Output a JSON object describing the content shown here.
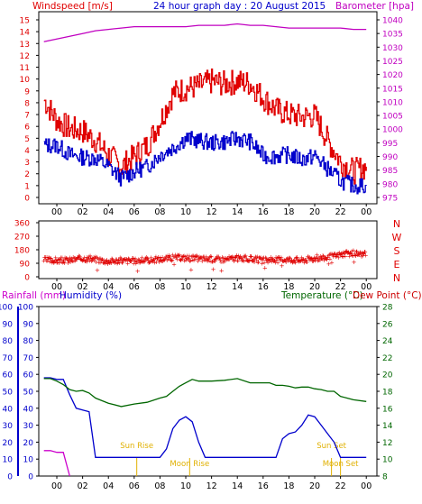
{
  "header": {
    "title": "24 hour graph day : 20 August 2015",
    "windspeed_label": "Windspeed [m/s]",
    "barometer_label": "Barometer [hpa]"
  },
  "colors": {
    "wind_gust": "#e00000",
    "wind_avg": "#0000cc",
    "barometer": "#c000c0",
    "direction": "#e00000",
    "humidity": "#0000cc",
    "temperature": "#006600",
    "dewpoint": "#cc0000",
    "rainfall": "#cc00cc",
    "sun_moon": "#e0b000",
    "axis_text": "#000000",
    "blue_text": "#0000cc",
    "green_text": "#006600"
  },
  "chart_data": [
    {
      "type": "line",
      "title": "24 hour graph day : 20 August 2015",
      "ylabel": "Windspeed [m/s]",
      "y2label": "Barometer [hpa]",
      "ylim": [
        0,
        15
      ],
      "y2lim": [
        975,
        1040
      ],
      "x_ticks": [
        "00",
        "02",
        "04",
        "06",
        "08",
        "10",
        "12",
        "14",
        "16",
        "18",
        "20",
        "22",
        "00"
      ],
      "y_ticks": [
        0,
        1,
        2,
        3,
        4,
        5,
        6,
        7,
        8,
        9,
        10,
        11,
        12,
        13,
        14,
        15
      ],
      "y2_ticks": [
        975,
        980,
        985,
        990,
        995,
        1000,
        1005,
        1010,
        1015,
        1020,
        1025,
        1030,
        1035,
        1040
      ],
      "x": [
        -1,
        0,
        1,
        2,
        3,
        4,
        5,
        6,
        7,
        8,
        9,
        10,
        11,
        12,
        13,
        14,
        15,
        16,
        17,
        18,
        19,
        20,
        21,
        22,
        23,
        24
      ],
      "series": [
        {
          "name": "Wind gust",
          "values": [
            8.2,
            6.5,
            5.8,
            5.6,
            4.8,
            3.6,
            2.6,
            3.5,
            4.4,
            6.5,
            8.8,
            9.2,
            9.4,
            9.8,
            9.6,
            9.8,
            9.6,
            8.4,
            7.4,
            7.0,
            6.8,
            6.9,
            4.8,
            3.0,
            2.2,
            2.6
          ]
        },
        {
          "name": "Wind average",
          "values": [
            4.4,
            4.4,
            3.6,
            3.4,
            3.3,
            2.6,
            1.6,
            2.2,
            2.6,
            3.6,
            4.2,
            5.0,
            4.8,
            4.6,
            4.7,
            5.0,
            4.7,
            3.5,
            3.5,
            3.6,
            3.2,
            3.5,
            2.4,
            1.4,
            1.0,
            1.0
          ]
        },
        {
          "name": "Barometer",
          "axis": "y2",
          "values": [
            1032,
            1033,
            1034,
            1035,
            1036,
            1036.5,
            1037,
            1037.5,
            1037.5,
            1037.5,
            1037.5,
            1037.5,
            1038,
            1038,
            1038,
            1038.5,
            1038,
            1038,
            1037.5,
            1037,
            1037,
            1037,
            1037,
            1037,
            1036.5,
            1036.5
          ]
        }
      ]
    },
    {
      "type": "scatter",
      "ylabel_ticks": [
        "360",
        "270",
        "180",
        "90",
        "0"
      ],
      "y_right_labels": [
        "N",
        "W",
        "S",
        "E",
        "N"
      ],
      "ylim": [
        0,
        360
      ],
      "x_ticks": [
        "00",
        "02",
        "04",
        "06",
        "08",
        "10",
        "12",
        "14",
        "16",
        "18",
        "20",
        "22",
        "00"
      ],
      "series": [
        {
          "name": "Wind direction",
          "x": [
            -1,
            0,
            1,
            2,
            3,
            4,
            5,
            6,
            7,
            8,
            9,
            10,
            11,
            12,
            13,
            14,
            15,
            16,
            17,
            18,
            19,
            20,
            21,
            22,
            23,
            24
          ],
          "values": [
            115,
            110,
            112,
            125,
            118,
            105,
            110,
            108,
            112,
            118,
            130,
            128,
            122,
            120,
            118,
            125,
            120,
            110,
            115,
            118,
            112,
            125,
            130,
            150,
            158,
            150
          ]
        }
      ]
    },
    {
      "type": "line",
      "ylabel": "Humidity (%)",
      "rain_label": "Rainfall (mm)",
      "temp_label": "Temperature (°C)",
      "dew_label": "Dew Point (°C)",
      "ylim": [
        0,
        100
      ],
      "y_temp_lim": [
        8,
        28
      ],
      "y_left_ticks": [
        0,
        10,
        20,
        30,
        40,
        50,
        60,
        70,
        80,
        90,
        100
      ],
      "y_right_ticks": [
        8,
        10,
        12,
        14,
        16,
        18,
        20,
        22,
        24,
        26,
        28
      ],
      "x_ticks": [
        "00",
        "02",
        "04",
        "06",
        "08",
        "10",
        "12",
        "14",
        "16",
        "18",
        "20",
        "22",
        "00"
      ],
      "x": [
        -1,
        -0.5,
        0,
        0.5,
        1,
        1.5,
        2,
        2.5,
        3,
        4,
        5,
        6,
        7,
        8,
        8.5,
        9,
        9.5,
        10,
        10.5,
        11,
        11.5,
        12,
        13,
        14,
        15,
        16,
        16.5,
        17,
        17.5,
        18,
        18.5,
        19,
        19.5,
        20,
        20.5,
        21,
        21.5,
        22,
        22.5,
        23,
        24
      ],
      "series": [
        {
          "name": "Humidity",
          "values": [
            58,
            58,
            57,
            57,
            48,
            40,
            39,
            38,
            11,
            11,
            11,
            11,
            11,
            11,
            16,
            28,
            33,
            35,
            32,
            20,
            11,
            11,
            11,
            11,
            11,
            11,
            11,
            11,
            22,
            25,
            26,
            30,
            36,
            35,
            30,
            25,
            20,
            11,
            11,
            11,
            11
          ]
        },
        {
          "name": "Temperature",
          "axis": "y_temp",
          "values": [
            19.5,
            19.5,
            19.2,
            18.8,
            18.2,
            18.0,
            18.1,
            17.8,
            17.2,
            16.6,
            16.2,
            16.5,
            16.7,
            17.2,
            17.4,
            18.0,
            18.6,
            19.0,
            19.4,
            19.2,
            19.2,
            19.2,
            19.3,
            19.5,
            19.0,
            19.0,
            19.0,
            18.7,
            18.7,
            18.6,
            18.4,
            18.5,
            18.5,
            18.3,
            18.2,
            18.0,
            18.0,
            17.4,
            17.2,
            17.0,
            16.8
          ]
        },
        {
          "name": "Rainfall",
          "values": [
            15,
            15,
            14,
            14,
            0,
            0,
            0,
            0,
            0,
            0,
            0,
            0,
            0,
            0,
            0,
            0,
            0,
            0,
            0,
            0,
            0,
            0,
            0,
            0,
            0,
            0,
            0,
            0,
            0,
            0,
            0,
            0,
            0,
            0,
            0,
            0,
            0,
            0,
            0,
            0,
            0
          ]
        }
      ],
      "annotations": [
        {
          "label": "Sun Rise",
          "x": 6.2
        },
        {
          "label": "Moon Rise",
          "x": 10.3
        },
        {
          "label": "Sun Set",
          "x": 21.3
        },
        {
          "label": "Moon Set",
          "x": 22.0
        }
      ]
    }
  ]
}
